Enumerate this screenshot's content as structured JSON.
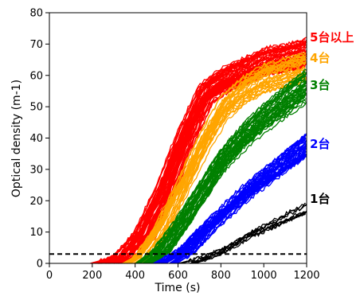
{
  "chart_data": {
    "type": "line",
    "title": "",
    "xlabel": "Time (s)",
    "ylabel": "Optical density (m-1)",
    "xlim": [
      0,
      1200
    ],
    "ylim": [
      0,
      80
    ],
    "xticks": [
      0,
      200,
      400,
      600,
      800,
      1000,
      1200
    ],
    "yticks": [
      0,
      10,
      20,
      30,
      40,
      50,
      60,
      70,
      80
    ],
    "grid": false,
    "threshold": {
      "y": 3,
      "style": "dashed",
      "color": "#000000"
    },
    "groups": [
      {
        "label": "5台以上",
        "color": "#ff0000",
        "onset_range": [
          175,
          330
        ],
        "peak_range": [
          63,
          72
        ],
        "n_curves": 60,
        "representative": {
          "x": [
            200,
            300,
            400,
            500,
            600,
            700,
            800,
            900,
            1000,
            1100,
            1200
          ],
          "y": [
            0,
            2,
            10,
            25,
            43,
            58,
            63,
            66,
            69,
            70,
            72
          ]
        }
      },
      {
        "label": "4台",
        "color": "#ffa500",
        "onset_range": [
          330,
          430
        ],
        "peak_range": [
          58,
          68
        ],
        "n_curves": 30,
        "representative": {
          "x": [
            350,
            400,
            500,
            600,
            700,
            800,
            900,
            1000,
            1100,
            1200
          ],
          "y": [
            0,
            2,
            12,
            26,
            40,
            52,
            58,
            62,
            64,
            66
          ]
        }
      },
      {
        "label": "3台",
        "color": "#008000",
        "onset_range": [
          400,
          500
        ],
        "peak_range": [
          50,
          62
        ],
        "n_curves": 40,
        "representative": {
          "x": [
            420,
            500,
            600,
            700,
            800,
            900,
            1000,
            1100,
            1200
          ],
          "y": [
            0,
            4,
            13,
            23,
            33,
            40,
            46,
            51,
            56
          ]
        }
      },
      {
        "label": "2台",
        "color": "#0000ff",
        "onset_range": [
          480,
          600
        ],
        "peak_range": [
          34,
          42
        ],
        "n_curves": 40,
        "representative": {
          "x": [
            500,
            600,
            700,
            800,
            900,
            1000,
            1100,
            1200
          ],
          "y": [
            0,
            4,
            11,
            17,
            23,
            28,
            33,
            38
          ]
        }
      },
      {
        "label": "1台",
        "color": "#000000",
        "onset_range": [
          580,
          700
        ],
        "peak_range": [
          16,
          20
        ],
        "n_curves": 8,
        "representative": {
          "x": [
            600,
            700,
            800,
            900,
            1000,
            1100,
            1200
          ],
          "y": [
            0,
            2,
            5,
            9,
            12,
            15,
            18
          ]
        }
      }
    ]
  }
}
